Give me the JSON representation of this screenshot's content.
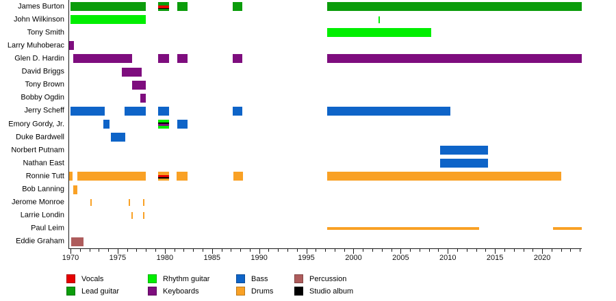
{
  "chart_data": {
    "type": "timeline",
    "title": "",
    "description": "Band membership timeline by instrument, 1970 to present",
    "axis": {
      "min": 1969.78,
      "max": 2024.13,
      "major_ticks": [
        1970,
        1975,
        1980,
        1985,
        1990,
        1995,
        2000,
        2005,
        2010,
        2015,
        2020
      ],
      "minor_tick_from": 1970,
      "minor_tick_to": 2024,
      "minor_tick_step": 1,
      "grid": false
    },
    "palette": {
      "vocals": "#E60000",
      "lead_guitar": "#0B9C0B",
      "rhythm_guitar": "#00EE00",
      "keyboards": "#7E0D7E",
      "bass": "#0E64C8",
      "drums": "#F9A125",
      "percussion": "#AE5C5C",
      "studio_album": "#000000"
    },
    "members": [
      {
        "name": "James Burton",
        "bars": [
          {
            "start": 1969.93,
            "end": 1977.9,
            "color": "lead_guitar"
          },
          {
            "start": 1979.2,
            "end": 1980.35,
            "color": "lead_guitar",
            "stripes": [
              {
                "color": "lead_guitar",
                "frac": 0.35
              },
              {
                "color": "vocals",
                "frac": 0.3
              },
              {
                "color": "studio_album",
                "frac": 0.12
              },
              {
                "color": "lead_guitar",
                "frac": 0.23
              }
            ]
          },
          {
            "start": 1981.23,
            "end": 1982.32,
            "color": "lead_guitar"
          },
          {
            "start": 1987.13,
            "end": 1988.14,
            "color": "lead_guitar"
          },
          {
            "start": 1997.17,
            "end": 2024.13,
            "color": "lead_guitar"
          }
        ]
      },
      {
        "name": "John Wilkinson",
        "bars": [
          {
            "start": 1969.93,
            "end": 1977.9,
            "color": "rhythm_guitar"
          },
          {
            "start": 2002.68,
            "kind": "tick",
            "color": "rhythm_guitar"
          }
        ]
      },
      {
        "name": "Tony Smith",
        "bars": [
          {
            "start": 1997.17,
            "end": 2008.19,
            "color": "rhythm_guitar"
          }
        ]
      },
      {
        "name": "Larry Muhoberac",
        "bars": [
          {
            "start": 1969.8,
            "end": 1970.29,
            "color": "keyboards"
          }
        ]
      },
      {
        "name": "Glen D. Hardin",
        "bars": [
          {
            "start": 1970.22,
            "end": 1976.45,
            "color": "keyboards"
          },
          {
            "start": 1979.2,
            "end": 1980.35,
            "color": "keyboards"
          },
          {
            "start": 1981.23,
            "end": 1982.32,
            "color": "keyboards"
          },
          {
            "start": 1987.13,
            "end": 1988.14,
            "color": "keyboards"
          },
          {
            "start": 1997.17,
            "end": 2024.13,
            "color": "keyboards"
          }
        ]
      },
      {
        "name": "David Briggs",
        "bars": [
          {
            "start": 1975.34,
            "end": 1977.46,
            "color": "keyboards"
          }
        ]
      },
      {
        "name": "Tony Brown",
        "bars": [
          {
            "start": 1976.45,
            "end": 1977.9,
            "color": "keyboards"
          }
        ]
      },
      {
        "name": "Bobby Ogdin",
        "bars": [
          {
            "start": 1977.32,
            "end": 1977.9,
            "color": "keyboards"
          }
        ]
      },
      {
        "name": "Jerry Scheff",
        "bars": [
          {
            "start": 1969.9,
            "end": 1973.53,
            "color": "bass"
          },
          {
            "start": 1975.65,
            "end": 1977.9,
            "color": "bass"
          },
          {
            "start": 1979.2,
            "end": 1980.35,
            "color": "bass"
          },
          {
            "start": 1987.13,
            "end": 1988.14,
            "color": "bass"
          },
          {
            "start": 1997.17,
            "end": 2010.22,
            "color": "bass"
          }
        ]
      },
      {
        "name": "Emory Gordy, Jr.",
        "bars": [
          {
            "start": 1973.41,
            "end": 1974.06,
            "color": "bass"
          },
          {
            "start": 1979.2,
            "end": 1980.35,
            "color": "rhythm_guitar",
            "stripes": [
              {
                "color": "rhythm_guitar",
                "frac": 0.27
              },
              {
                "color": "studio_album",
                "frac": 0.2
              },
              {
                "color": "keyboards",
                "frac": 0.26
              },
              {
                "color": "rhythm_guitar",
                "frac": 0.27
              }
            ]
          },
          {
            "start": 1981.23,
            "end": 1982.32,
            "color": "bass"
          }
        ]
      },
      {
        "name": "Duke Bardwell",
        "bars": [
          {
            "start": 1974.2,
            "end": 1975.72,
            "color": "bass"
          }
        ]
      },
      {
        "name": "Norbert Putnam",
        "bars": [
          {
            "start": 2009.13,
            "end": 2014.2,
            "color": "bass"
          }
        ]
      },
      {
        "name": "Nathan East",
        "bars": [
          {
            "start": 2009.13,
            "end": 2014.2,
            "color": "bass"
          }
        ]
      },
      {
        "name": "Ronnie Tutt",
        "bars": [
          {
            "start": 1969.8,
            "end": 1970.14,
            "color": "drums"
          },
          {
            "start": 1970.65,
            "end": 1977.9,
            "color": "drums"
          },
          {
            "start": 1979.2,
            "end": 1980.35,
            "color": "drums",
            "stripes": [
              {
                "color": "drums",
                "frac": 0.32
              },
              {
                "color": "vocals",
                "frac": 0.3
              },
              {
                "color": "studio_album",
                "frac": 0.12
              },
              {
                "color": "drums",
                "frac": 0.26
              }
            ]
          },
          {
            "start": 1981.16,
            "end": 1982.32,
            "color": "drums"
          },
          {
            "start": 1987.17,
            "end": 1988.19,
            "color": "drums"
          },
          {
            "start": 1997.17,
            "end": 2021.96,
            "color": "drums"
          }
        ]
      },
      {
        "name": "Bob Lanning",
        "bars": [
          {
            "start": 1970.22,
            "end": 1970.65,
            "color": "drums"
          }
        ]
      },
      {
        "name": "Jerome Monroe",
        "bars": [
          {
            "start": 1972.12,
            "kind": "tick",
            "color": "drums"
          },
          {
            "start": 1976.14,
            "kind": "tick",
            "color": "drums"
          },
          {
            "start": 1977.7,
            "kind": "tick",
            "color": "drums"
          }
        ]
      },
      {
        "name": "Larrie Londin",
        "bars": [
          {
            "start": 1976.47,
            "kind": "tick",
            "color": "drums"
          },
          {
            "start": 1977.7,
            "kind": "tick",
            "color": "drums"
          }
        ]
      },
      {
        "name": "Paul Leim",
        "bars": [
          {
            "start": 1997.17,
            "end": 2013.26,
            "color": "drums",
            "kind": "thin"
          },
          {
            "start": 2021.07,
            "end": 2024.13,
            "color": "drums",
            "kind": "thin"
          }
        ]
      },
      {
        "name": "Eddie Graham",
        "bars": [
          {
            "start": 1970.0,
            "end": 1971.3,
            "color": "percussion"
          }
        ]
      }
    ],
    "legend": {
      "position": "bottom",
      "columns": [
        {
          "items": [
            {
              "label": "Vocals",
              "color": "vocals"
            },
            {
              "label": "Lead guitar",
              "color": "lead_guitar"
            }
          ]
        },
        {
          "items": [
            {
              "label": "Rhythm guitar",
              "color": "rhythm_guitar"
            },
            {
              "label": "Keyboards",
              "color": "keyboards"
            }
          ]
        },
        {
          "items": [
            {
              "label": "Bass",
              "color": "bass"
            },
            {
              "label": "Drums",
              "color": "drums"
            }
          ]
        },
        {
          "items": [
            {
              "label": "Percussion",
              "color": "percussion"
            },
            {
              "label": "Studio album",
              "color": "studio_album"
            }
          ]
        }
      ]
    }
  }
}
